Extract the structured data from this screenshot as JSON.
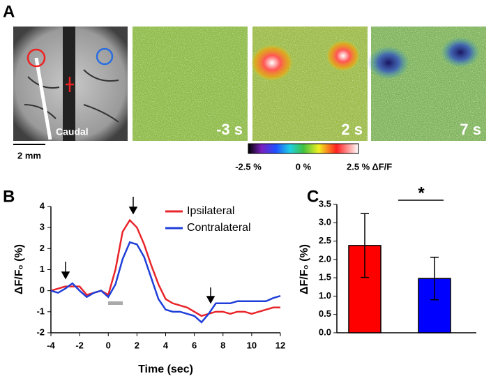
{
  "panel_a": {
    "label": "A",
    "image_label": "Caudal",
    "scale_bar": "2 mm",
    "frames": [
      "-3 s",
      "2 s",
      "7 s"
    ],
    "colorbar": {
      "lim": [
        -2.5,
        2.5
      ],
      "ticks": [
        {
          "value": -2.5,
          "label": "-2.5 %"
        },
        {
          "value": 0,
          "label": "0 %"
        },
        {
          "value": 2.5,
          "label": "2.5 % ΔF/F"
        }
      ]
    }
  },
  "chart_data": [
    {
      "type": "line",
      "label": "B",
      "xlabel": "Time (sec)",
      "ylabel": "ΔF/F₀ (%)",
      "x": [
        -4,
        -3.5,
        -3,
        -2.5,
        -2,
        -1.5,
        -1,
        -0.5,
        0,
        0.5,
        1,
        1.5,
        2,
        2.5,
        3,
        3.5,
        4,
        4.5,
        5,
        5.5,
        6,
        6.5,
        7,
        7.5,
        8,
        8.5,
        9,
        9.5,
        10,
        10.5,
        11,
        11.5,
        12
      ],
      "series": [
        {
          "name": "Ipsilateral",
          "color": "#e8252b",
          "values": [
            0,
            0.1,
            0.2,
            0.2,
            0.2,
            -0.2,
            -0.1,
            0,
            -0.2,
            1.0,
            2.8,
            3.35,
            3.0,
            2.2,
            1.2,
            0.3,
            -0.4,
            -0.6,
            -0.7,
            -0.8,
            -1.0,
            -1.2,
            -1.1,
            -1.0,
            -1.0,
            -1.1,
            -1.0,
            -1.0,
            -1.1,
            -1.0,
            -0.9,
            -0.8,
            -0.8
          ]
        },
        {
          "name": "Contralateral",
          "color": "#1f3fd8",
          "values": [
            0,
            -0.1,
            0.1,
            0.35,
            0,
            -0.3,
            -0.1,
            0,
            -0.3,
            0.3,
            1.5,
            2.3,
            2.2,
            1.6,
            0.6,
            -0.4,
            -0.9,
            -1.0,
            -1.0,
            -1.1,
            -1.2,
            -1.5,
            -1.1,
            -0.6,
            -0.6,
            -0.6,
            -0.5,
            -0.5,
            -0.5,
            -0.5,
            -0.5,
            -0.35,
            -0.25
          ]
        }
      ],
      "xlim": [
        -4,
        12
      ],
      "xticks": [
        -4,
        -2,
        0,
        2,
        4,
        6,
        8,
        10,
        12
      ],
      "ylim": [
        -2,
        4
      ],
      "yticks": [
        -2,
        -1,
        0,
        1,
        2,
        3,
        4
      ]
    },
    {
      "type": "bar",
      "label": "C",
      "ylabel": "ΔF/F₀ (%)",
      "annotation": "*",
      "categories": [
        null,
        null
      ],
      "values": [
        2.38,
        1.48
      ],
      "errors": [
        0.87,
        0.58
      ],
      "colors": [
        "#ff0000",
        "#0000ff"
      ],
      "ylim": [
        0,
        3.5
      ],
      "yticks": [
        {
          "value": 0,
          "label": "0.0"
        },
        0.5,
        {
          "value": 1,
          "label": "1.0"
        },
        1.5,
        {
          "value": 2,
          "label": "2.0"
        },
        2.5,
        {
          "value": 3,
          "label": "3.0"
        },
        3.5
      ]
    }
  ]
}
